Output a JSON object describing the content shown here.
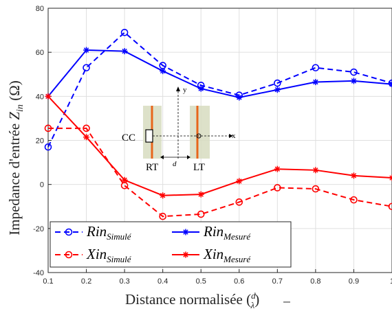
{
  "chart_data": {
    "type": "line",
    "xlabel": "Distance normalisée (d/λ)",
    "ylabel": "Impedance d'entrée Z_in (Ω)",
    "x": [
      0.1,
      0.2,
      0.3,
      0.4,
      0.5,
      0.6,
      0.7,
      0.8,
      0.9,
      1.0
    ],
    "xlim": [
      0.1,
      1.0
    ],
    "ylim": [
      -40,
      80
    ],
    "xticks": [
      "0.1",
      "0.2",
      "0.3",
      "0.4",
      "0.5",
      "0.6",
      "0.7",
      "0.8",
      "0.9",
      "1"
    ],
    "yticks": [
      "-40",
      "-20",
      "0",
      "20",
      "40",
      "60",
      "80"
    ],
    "grid": true,
    "legend_position": "bottom-left",
    "series": [
      {
        "name": "Rin_Simulé",
        "color": "#0000ff",
        "style": "dashed",
        "marker": "circle",
        "values": [
          17,
          53,
          69,
          54,
          45,
          40.5,
          46,
          53,
          51,
          46
        ]
      },
      {
        "name": "Rin_Mesuré",
        "color": "#0000ff",
        "style": "solid",
        "marker": "asterisk",
        "values": [
          40,
          61,
          60.5,
          51.5,
          43.5,
          39.5,
          43,
          46.5,
          47,
          45.5
        ]
      },
      {
        "name": "Xin_Simulé",
        "color": "#ff0000",
        "style": "dashed",
        "marker": "circle",
        "values": [
          25.5,
          25.5,
          -0.5,
          -14.5,
          -13.5,
          -8,
          -1.5,
          -2,
          -7,
          -10
        ]
      },
      {
        "name": "Xin_Mesuré",
        "color": "#ff0000",
        "style": "solid",
        "marker": "asterisk",
        "values": [
          40,
          21.5,
          2,
          -5,
          -4.5,
          1.5,
          7,
          6.5,
          4,
          3
        ]
      }
    ]
  },
  "inset": {
    "cc_label": "CC",
    "rt_label": "RT",
    "lt_label": "LT",
    "d_label": "d",
    "x_label": "x",
    "y_label": "y"
  }
}
